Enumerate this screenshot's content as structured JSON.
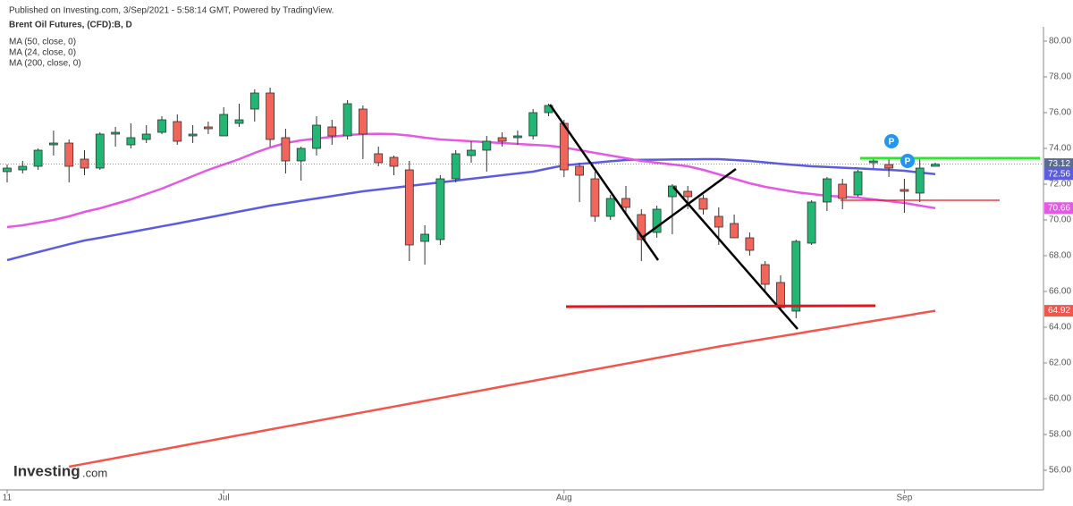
{
  "header": "Published on Investing.com, 3/Sep/2021 - 5:58:14 GMT, Powered by TradingView.",
  "logo": {
    "name": "Investing",
    "suffix": ".com"
  },
  "chart_data": {
    "type": "candlestick",
    "title": "Brent Oil Futures, (CFD):B, D",
    "categories": [
      "11",
      null,
      null,
      null,
      null,
      null,
      null,
      null,
      null,
      null,
      null,
      null,
      null,
      null,
      "Jul",
      null,
      null,
      null,
      null,
      null,
      null,
      null,
      null,
      null,
      null,
      null,
      null,
      null,
      null,
      null,
      null,
      null,
      null,
      null,
      null,
      null,
      "Aug",
      null,
      null,
      null,
      null,
      null,
      null,
      null,
      null,
      null,
      null,
      null,
      null,
      null,
      null,
      null,
      null,
      null,
      null,
      null,
      null,
      null,
      "Sep",
      null,
      null
    ],
    "ohlc": {
      "open": [
        72.7,
        72.8,
        73.0,
        74.2,
        74.3,
        73.4,
        72.9,
        74.8,
        74.2,
        74.5,
        74.9,
        75.5,
        74.7,
        75.2,
        74.7,
        75.4,
        76.2,
        77.1,
        74.6,
        73.3,
        74.0,
        75.2,
        74.7,
        76.2,
        73.7,
        73.5,
        72.8,
        68.8,
        68.9,
        72.3,
        73.6,
        73.9,
        74.6,
        74.6,
        74.7,
        76.0,
        75.4,
        73.0,
        72.3,
        70.2,
        71.2,
        70.3,
        69.3,
        71.3,
        71.6,
        71.2,
        70.2,
        69.8,
        69.0,
        67.5,
        66.5,
        64.9,
        68.7,
        71.0,
        72.0,
        71.4,
        73.2,
        73.1,
        71.7,
        71.5,
        73.0
      ],
      "high": [
        73.1,
        73.3,
        74.0,
        75.0,
        74.5,
        73.9,
        74.9,
        75.2,
        75.4,
        75.3,
        75.8,
        75.9,
        75.3,
        75.5,
        76.3,
        76.5,
        77.3,
        77.4,
        75.1,
        74.1,
        75.8,
        75.6,
        76.7,
        76.4,
        74.1,
        73.6,
        73.3,
        69.7,
        72.5,
        73.9,
        74.4,
        74.7,
        74.9,
        75.0,
        76.2,
        76.5,
        75.6,
        73.2,
        72.7,
        71.4,
        71.9,
        70.6,
        70.8,
        72.0,
        71.9,
        71.4,
        70.7,
        70.3,
        69.3,
        67.7,
        66.9,
        68.9,
        71.1,
        72.4,
        72.3,
        72.8,
        73.5,
        73.5,
        72.3,
        73.5,
        73.2
      ],
      "low": [
        72.1,
        72.6,
        72.8,
        73.6,
        72.1,
        72.5,
        72.8,
        74.1,
        74.0,
        74.3,
        74.8,
        74.2,
        74.3,
        74.8,
        74.7,
        75.2,
        75.5,
        74.1,
        72.6,
        72.2,
        73.6,
        74.2,
        74.5,
        73.4,
        73.0,
        72.5,
        67.7,
        67.5,
        68.6,
        72.1,
        73.2,
        72.7,
        74.1,
        74.2,
        74.5,
        75.8,
        72.4,
        71.0,
        69.9,
        70.0,
        70.4,
        67.7,
        69.0,
        69.2,
        70.6,
        70.3,
        68.6,
        69.0,
        68.0,
        66.0,
        65.0,
        64.5,
        68.6,
        70.5,
        70.6,
        71.3,
        72.9,
        72.4,
        70.4,
        71.0,
        73.0
      ],
      "close": [
        72.9,
        73.0,
        73.9,
        74.3,
        73.0,
        72.9,
        74.8,
        74.9,
        74.6,
        74.8,
        75.6,
        74.4,
        74.8,
        75.1,
        75.9,
        75.6,
        77.1,
        74.5,
        73.3,
        74.0,
        75.3,
        74.7,
        76.5,
        74.8,
        73.2,
        73.0,
        68.6,
        69.2,
        72.3,
        73.7,
        73.9,
        74.4,
        74.4,
        74.7,
        76.0,
        76.4,
        72.8,
        72.5,
        70.2,
        71.2,
        70.7,
        68.9,
        70.6,
        71.9,
        71.3,
        70.6,
        69.6,
        69.0,
        68.3,
        66.4,
        65.1,
        68.8,
        71.0,
        72.3,
        71.2,
        72.7,
        73.3,
        72.9,
        71.6,
        72.9,
        73.12
      ]
    },
    "up_color": "#22b573",
    "down_color": "#f0665a",
    "series": [
      {
        "name": "MA (50, close, 0)",
        "color": "#5b5ce0",
        "values": [
          67.75,
          67.98,
          68.2,
          68.42,
          68.64,
          68.85,
          69.0,
          69.16,
          69.32,
          69.48,
          69.64,
          69.8,
          69.97,
          70.13,
          70.3,
          70.47,
          70.63,
          70.8,
          70.93,
          71.07,
          71.2,
          71.33,
          71.47,
          71.6,
          71.7,
          71.8,
          71.9,
          72.0,
          72.1,
          72.2,
          72.3,
          72.4,
          72.5,
          72.6,
          72.7,
          72.88,
          73.05,
          73.13,
          73.2,
          73.28,
          73.35,
          73.36,
          73.37,
          73.38,
          73.39,
          73.4,
          73.4,
          73.35,
          73.3,
          73.22,
          73.14,
          73.07,
          73.0,
          72.96,
          72.92,
          72.88,
          72.84,
          72.8,
          72.75,
          72.65,
          72.56
        ]
      },
      {
        "name": "MA (24, close, 0)",
        "color": "#e558e5",
        "values": [
          69.6,
          69.7,
          69.85,
          70.0,
          70.2,
          70.45,
          70.65,
          70.9,
          71.15,
          71.45,
          71.75,
          72.1,
          72.45,
          72.8,
          73.1,
          73.4,
          73.75,
          74.05,
          74.3,
          74.45,
          74.55,
          74.65,
          74.75,
          74.8,
          74.82,
          74.8,
          74.72,
          74.6,
          74.5,
          74.45,
          74.4,
          74.35,
          74.3,
          74.25,
          74.2,
          74.15,
          74.05,
          73.9,
          73.75,
          73.6,
          73.45,
          73.3,
          73.2,
          73.1,
          73.0,
          72.8,
          72.55,
          72.3,
          72.05,
          71.85,
          71.7,
          71.55,
          71.45,
          71.35,
          71.3,
          71.25,
          71.15,
          71.05,
          70.95,
          70.8,
          70.66
        ]
      },
      {
        "name": "MA (200, close, 0)",
        "color": "#f2554a",
        "values": [
          null,
          null,
          null,
          null,
          56.2,
          56.36,
          56.52,
          56.68,
          56.84,
          57.0,
          57.16,
          57.32,
          57.48,
          57.64,
          57.8,
          57.96,
          58.12,
          58.28,
          58.44,
          58.6,
          58.76,
          58.92,
          59.08,
          59.24,
          59.4,
          59.56,
          59.72,
          59.88,
          60.04,
          60.2,
          60.36,
          60.52,
          60.68,
          60.84,
          61.0,
          61.16,
          61.32,
          61.48,
          61.64,
          61.8,
          61.96,
          62.12,
          62.28,
          62.44,
          62.6,
          62.76,
          62.92,
          63.06,
          63.21,
          63.35,
          63.49,
          63.63,
          63.78,
          63.92,
          64.06,
          64.21,
          64.35,
          64.49,
          64.63,
          64.78,
          64.92
        ]
      }
    ],
    "last_price_color": "#5b6c91",
    "ylim": [
      54.9,
      82
    ],
    "yticks": [
      {
        "value": 56,
        "label": "56.00"
      },
      {
        "value": 58,
        "label": "58.00"
      },
      {
        "value": 60,
        "label": "60.00"
      },
      {
        "value": 62,
        "label": "62.00"
      },
      {
        "value": 64,
        "label": "64.00"
      },
      {
        "value": 66,
        "label": "66.00"
      },
      {
        "value": 68,
        "label": "68.00"
      },
      {
        "value": 70,
        "label": "70.00"
      },
      {
        "value": 72,
        "label": "72.00"
      },
      {
        "value": 74,
        "label": "74.00"
      },
      {
        "value": 76,
        "label": "76.00"
      },
      {
        "value": 78,
        "label": "78.00"
      },
      {
        "value": 80,
        "label": "80.00"
      }
    ],
    "annotations": [
      "P",
      "P"
    ]
  }
}
